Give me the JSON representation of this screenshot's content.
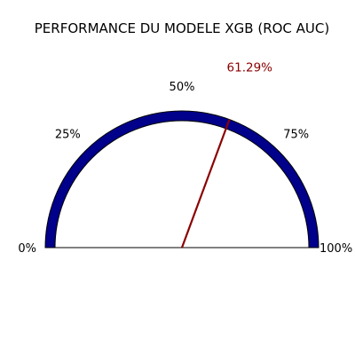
{
  "chart_data": {
    "type": "gauge",
    "title": "PERFORMANCE DU MODELE XGB (ROC AUC)",
    "value": 61.29,
    "value_label": "61.29%",
    "range": [
      0,
      100
    ],
    "ticks": [
      {
        "value": 0,
        "label": "0%"
      },
      {
        "value": 25,
        "label": "25%"
      },
      {
        "value": 50,
        "label": "50%"
      },
      {
        "value": 75,
        "label": "75%"
      },
      {
        "value": 100,
        "label": "100%"
      }
    ],
    "colors": {
      "arc_fill": "#00008b",
      "arc_edge": "#000000",
      "needle": "#8b0000",
      "value_text": "#8b0000",
      "baseline": "#000000"
    }
  }
}
